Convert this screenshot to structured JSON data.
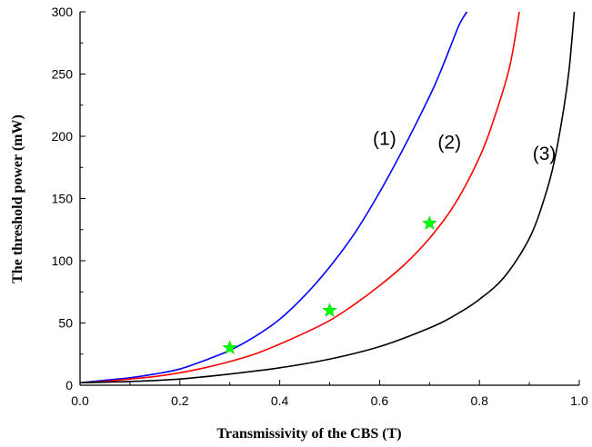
{
  "chart_data": {
    "type": "line",
    "xlabel": "Transmissivity of the CBS (T)",
    "ylabel": "The threshold power (mW)",
    "xlim": [
      0,
      1.0
    ],
    "ylim": [
      0,
      300
    ],
    "x_ticks": [
      "0.0",
      "0.2",
      "0.4",
      "0.6",
      "0.8",
      "1.0"
    ],
    "y_ticks": [
      "0",
      "50",
      "100",
      "150",
      "200",
      "250",
      "300"
    ],
    "grid": false,
    "legend": "none",
    "series": [
      {
        "name": "(1)",
        "color": "#0000ff",
        "x": [
          0,
          0.05,
          0.1,
          0.15,
          0.2,
          0.25,
          0.3,
          0.35,
          0.4,
          0.45,
          0.5,
          0.55,
          0.6,
          0.65,
          0.7,
          0.72,
          0.74,
          0.76,
          0.775
        ],
        "y": [
          2,
          4,
          6,
          9,
          13,
          20,
          28,
          39,
          53,
          72,
          95,
          122,
          155,
          192,
          232,
          250,
          270,
          290,
          300
        ]
      },
      {
        "name": "(2)",
        "color": "#ff0000",
        "x": [
          0,
          0.05,
          0.1,
          0.15,
          0.2,
          0.25,
          0.3,
          0.35,
          0.4,
          0.45,
          0.5,
          0.55,
          0.6,
          0.65,
          0.7,
          0.75,
          0.8,
          0.83,
          0.86,
          0.88
        ],
        "y": [
          2,
          3,
          5,
          7,
          10,
          14,
          19,
          25,
          33,
          42,
          52,
          65,
          80,
          97,
          118,
          145,
          183,
          215,
          255,
          300
        ]
      },
      {
        "name": "(3)",
        "color": "#000000",
        "x": [
          0,
          0.1,
          0.2,
          0.3,
          0.4,
          0.5,
          0.6,
          0.7,
          0.75,
          0.8,
          0.85,
          0.9,
          0.93,
          0.95,
          0.97,
          0.98,
          0.99
        ],
        "y": [
          2,
          3,
          5,
          9,
          14,
          21,
          31,
          46,
          56,
          69,
          87,
          118,
          150,
          180,
          225,
          255,
          300
        ]
      }
    ],
    "markers": {
      "color": "#00ff00",
      "points": [
        {
          "x": 0.3,
          "y": 30
        },
        {
          "x": 0.5,
          "y": 60
        },
        {
          "x": 0.7,
          "y": 130
        }
      ]
    },
    "annotations": [
      {
        "text": "(1)",
        "x": 0.61,
        "y": 193
      },
      {
        "text": "(2)",
        "x": 0.74,
        "y": 190
      },
      {
        "text": "(3)",
        "x": 0.93,
        "y": 181
      }
    ]
  }
}
